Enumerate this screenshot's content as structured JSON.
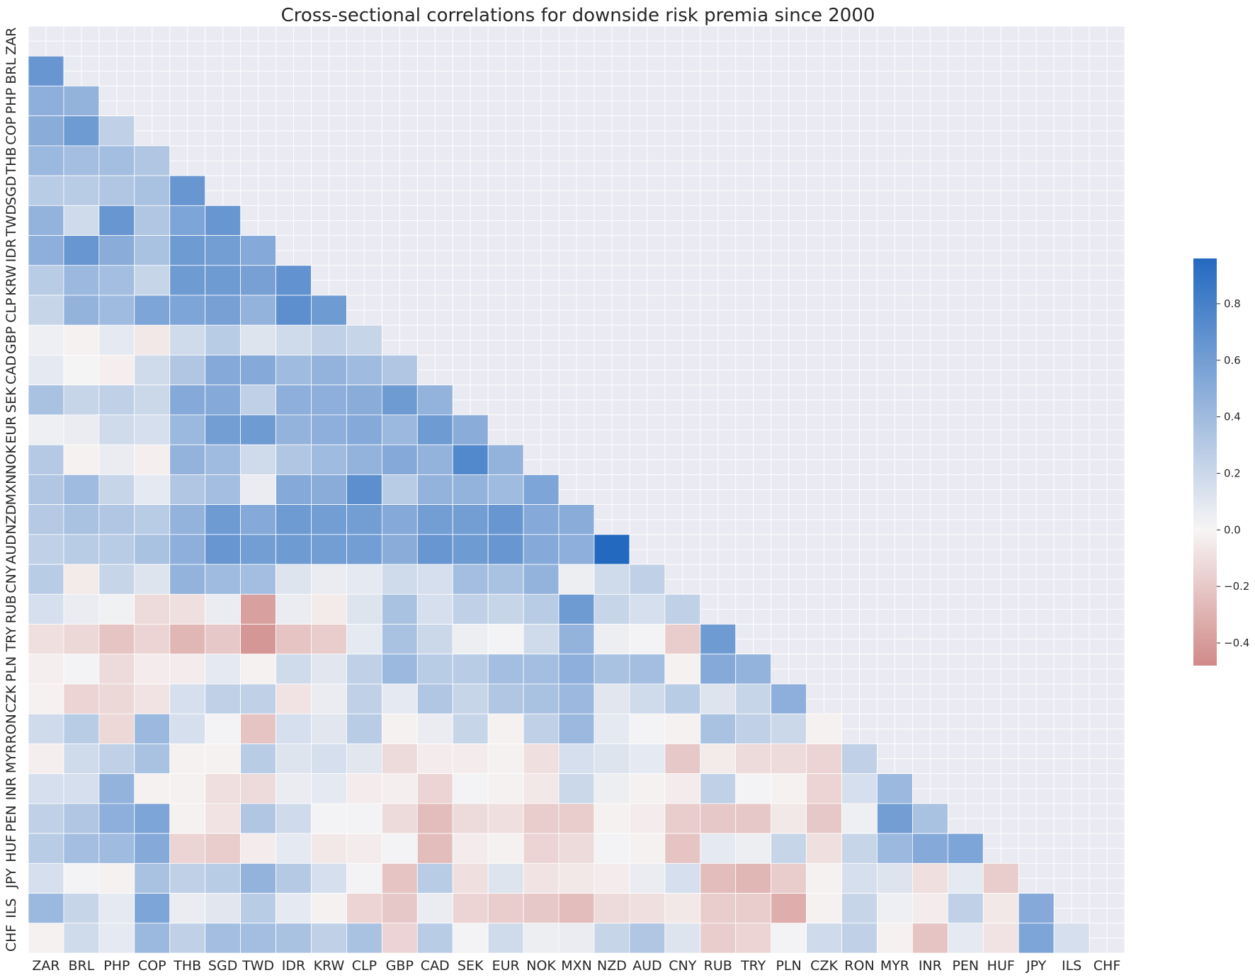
{
  "chart_data": {
    "type": "heatmap",
    "title": "Cross-sectional correlations for downside risk premia since 2000",
    "xlabel": "",
    "ylabel": "",
    "labels": [
      "ZAR",
      "BRL",
      "PHP",
      "COP",
      "THB",
      "SGD",
      "TWD",
      "IDR",
      "KRW",
      "CLP",
      "GBP",
      "CAD",
      "SEK",
      "EUR",
      "NOK",
      "MXN",
      "NZD",
      "AUD",
      "CNY",
      "RUB",
      "TRY",
      "PLN",
      "CZK",
      "RON",
      "MYR",
      "INR",
      "PEN",
      "HUF",
      "JPY",
      "ILS",
      "CHF"
    ],
    "mask": "upper-triangle-and-diagonal",
    "grid": true,
    "colorbar": {
      "vmin": -0.48,
      "vmax": 0.96,
      "ticks": [
        -0.4,
        -0.2,
        0.0,
        0.2,
        0.4,
        0.6,
        0.8
      ],
      "tick_labels": [
        "−0.4",
        "−0.2",
        "0.0",
        "0.2",
        "0.4",
        "0.6",
        "0.8"
      ],
      "colors": {
        "negative": "#d08a88",
        "neutral": "#f7f5f5",
        "positive": "#2469c0"
      },
      "placement": "right"
    },
    "matrix": [
      [],
      [
        0.65
      ],
      [
        0.48,
        0.45
      ],
      [
        0.5,
        0.62,
        0.25
      ],
      [
        0.42,
        0.38,
        0.38,
        0.32
      ],
      [
        0.28,
        0.28,
        0.32,
        0.35,
        0.65
      ],
      [
        0.45,
        0.18,
        0.65,
        0.32,
        0.55,
        0.65
      ],
      [
        0.48,
        0.65,
        0.5,
        0.35,
        0.62,
        0.6,
        0.52
      ],
      [
        0.28,
        0.42,
        0.38,
        0.22,
        0.62,
        0.62,
        0.58,
        0.68
      ],
      [
        0.22,
        0.45,
        0.4,
        0.55,
        0.55,
        0.58,
        0.45,
        0.7,
        0.62
      ],
      [
        0.04,
        -0.02,
        0.08,
        -0.06,
        0.18,
        0.28,
        0.12,
        0.18,
        0.25,
        0.22
      ],
      [
        0.08,
        0.01,
        -0.03,
        0.18,
        0.32,
        0.52,
        0.52,
        0.4,
        0.45,
        0.4,
        0.32
      ],
      [
        0.35,
        0.22,
        0.25,
        0.2,
        0.52,
        0.52,
        0.25,
        0.48,
        0.48,
        0.5,
        0.62,
        0.45
      ],
      [
        0.04,
        0.06,
        0.18,
        0.15,
        0.42,
        0.6,
        0.62,
        0.45,
        0.48,
        0.52,
        0.42,
        0.62,
        0.5
      ],
      [
        0.3,
        -0.02,
        0.06,
        -0.03,
        0.45,
        0.4,
        0.18,
        0.32,
        0.4,
        0.45,
        0.52,
        0.45,
        0.75,
        0.45
      ],
      [
        0.32,
        0.4,
        0.22,
        0.08,
        0.32,
        0.38,
        0.06,
        0.52,
        0.5,
        0.7,
        0.28,
        0.45,
        0.45,
        0.4,
        0.55
      ],
      [
        0.3,
        0.35,
        0.32,
        0.28,
        0.45,
        0.62,
        0.52,
        0.62,
        0.6,
        0.6,
        0.52,
        0.6,
        0.6,
        0.65,
        0.52,
        0.5
      ],
      [
        0.25,
        0.28,
        0.28,
        0.35,
        0.48,
        0.65,
        0.6,
        0.62,
        0.6,
        0.6,
        0.5,
        0.65,
        0.62,
        0.65,
        0.52,
        0.48,
        0.96
      ],
      [
        0.28,
        -0.05,
        0.22,
        0.12,
        0.45,
        0.4,
        0.38,
        0.12,
        0.06,
        0.08,
        0.18,
        0.15,
        0.38,
        0.35,
        0.45,
        0.05,
        0.18,
        0.25
      ],
      [
        0.15,
        0.06,
        0.03,
        -0.12,
        -0.1,
        0.06,
        -0.38,
        0.06,
        -0.05,
        0.12,
        0.35,
        0.15,
        0.25,
        0.22,
        0.28,
        0.62,
        0.22,
        0.15,
        0.25
      ],
      [
        -0.1,
        -0.13,
        -0.22,
        -0.15,
        -0.28,
        -0.2,
        -0.42,
        -0.22,
        -0.18,
        0.08,
        0.35,
        0.2,
        0.05,
        0.02,
        0.18,
        0.45,
        0.05,
        0.02,
        -0.18,
        0.62
      ],
      [
        -0.03,
        0.02,
        -0.12,
        -0.04,
        -0.04,
        0.08,
        -0.02,
        0.18,
        0.1,
        0.25,
        0.42,
        0.28,
        0.28,
        0.38,
        0.38,
        0.48,
        0.35,
        0.38,
        -0.02,
        0.52,
        0.45
      ],
      [
        -0.02,
        -0.15,
        -0.13,
        -0.08,
        0.15,
        0.25,
        0.25,
        -0.08,
        0.06,
        0.25,
        0.08,
        0.32,
        0.22,
        0.32,
        0.35,
        0.42,
        0.1,
        0.18,
        0.28,
        0.12,
        0.22,
        0.48
      ],
      [
        0.18,
        0.28,
        -0.13,
        0.42,
        0.15,
        0.02,
        -0.22,
        0.15,
        0.1,
        0.28,
        -0.02,
        0.06,
        0.22,
        -0.02,
        0.25,
        0.42,
        0.08,
        0.02,
        -0.02,
        0.35,
        0.25,
        0.2,
        -0.02
      ],
      [
        -0.03,
        0.18,
        0.25,
        0.35,
        -0.02,
        -0.02,
        0.28,
        0.12,
        0.15,
        0.1,
        -0.12,
        -0.04,
        -0.04,
        -0.02,
        -0.1,
        0.15,
        0.12,
        0.08,
        -0.2,
        -0.05,
        -0.12,
        -0.12,
        -0.15,
        0.25
      ],
      [
        0.15,
        0.15,
        0.45,
        -0.02,
        -0.02,
        -0.1,
        -0.12,
        0.06,
        0.08,
        -0.04,
        -0.03,
        -0.15,
        0.02,
        -0.02,
        -0.06,
        0.2,
        0.05,
        -0.02,
        -0.04,
        0.25,
        0.02,
        -0.02,
        -0.15,
        0.15,
        0.42
      ],
      [
        0.25,
        0.32,
        0.48,
        0.55,
        -0.02,
        -0.08,
        0.32,
        0.18,
        0.02,
        0.02,
        -0.12,
        -0.25,
        -0.12,
        -0.1,
        -0.18,
        -0.18,
        -0.02,
        -0.04,
        -0.18,
        -0.2,
        -0.2,
        -0.06,
        -0.2,
        0.04,
        0.6,
        0.35
      ],
      [
        0.28,
        0.38,
        0.4,
        0.52,
        -0.15,
        -0.18,
        -0.04,
        0.08,
        -0.06,
        -0.04,
        0.02,
        -0.25,
        -0.04,
        -0.02,
        -0.15,
        -0.12,
        0.02,
        -0.02,
        -0.22,
        0.08,
        0.05,
        0.22,
        -0.1,
        0.22,
        0.42,
        0.52,
        0.55
      ],
      [
        0.15,
        0.02,
        -0.02,
        0.35,
        0.25,
        0.28,
        0.45,
        0.3,
        0.15,
        0.02,
        -0.22,
        0.28,
        -0.1,
        0.12,
        -0.08,
        -0.06,
        -0.04,
        0.06,
        0.15,
        -0.25,
        -0.28,
        -0.18,
        -0.02,
        0.15,
        0.12,
        -0.1,
        0.08,
        -0.18
      ],
      [
        0.42,
        0.22,
        0.08,
        0.55,
        0.06,
        0.1,
        0.28,
        0.08,
        -0.02,
        -0.15,
        -0.2,
        0.06,
        -0.15,
        -0.18,
        -0.2,
        -0.25,
        -0.12,
        -0.1,
        -0.06,
        -0.18,
        -0.18,
        -0.32,
        -0.02,
        0.22,
        0.04,
        -0.04,
        0.25,
        -0.06,
        0.52
      ],
      [
        -0.02,
        0.18,
        0.08,
        0.42,
        0.25,
        0.38,
        0.38,
        0.35,
        0.25,
        0.35,
        -0.15,
        0.28,
        0.02,
        0.18,
        0.05,
        0.06,
        0.22,
        0.32,
        0.12,
        -0.18,
        -0.15,
        0.02,
        0.18,
        0.25,
        -0.02,
        -0.22,
        0.08,
        -0.08,
        0.55,
        0.15
      ]
    ]
  }
}
